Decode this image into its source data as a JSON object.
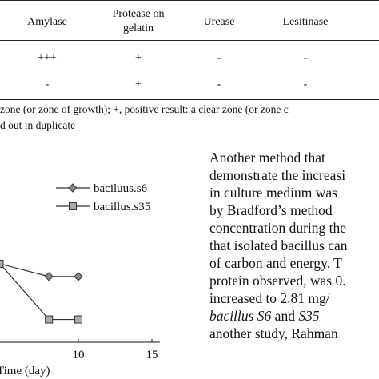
{
  "table": {
    "headers": [
      {
        "lines": [
          "Amylase"
        ]
      },
      {
        "lines": [
          "Protease on",
          "gelatin"
        ]
      },
      {
        "lines": [
          "Urease"
        ]
      },
      {
        "lines": [
          "Lesitinase"
        ]
      }
    ],
    "rows": [
      [
        "+++",
        "+",
        "-",
        "-"
      ],
      [
        "-",
        "+",
        "-",
        "-"
      ]
    ]
  },
  "footnote": {
    "line1": "zone (or zone of growth); +, positive result: a clear zone (or zone c",
    "line2": "d out in duplicate"
  },
  "chart_data": {
    "type": "line",
    "xlabel": "Time (day)",
    "x_ticks": [
      10,
      15
    ],
    "legend_position": "top-right",
    "series": [
      {
        "name": "baciluus.s6",
        "marker": "diamond",
        "color": "#888888",
        "x": [
          8,
          10
        ],
        "y": [
          0.52,
          0.52
        ]
      },
      {
        "name": "bacillus.s35",
        "marker": "square",
        "color": "#aaaaaa",
        "x": [
          8,
          10
        ],
        "y": [
          0.18,
          0.18
        ]
      }
    ]
  },
  "paragraph": {
    "lines": [
      "Another method that",
      "demonstrate the increasi",
      "in culture medium was",
      "by Bradford’s method",
      "concentration during the",
      "that isolated bacillus can",
      "of carbon and energy. T",
      "protein observed, was 0.",
      "increased to 2.81 mg/"
    ],
    "line10_italic_a": "bacillus S6",
    "line10_mid": " and ",
    "line10_italic_b": "S35",
    "line11": "another study, Rahman"
  }
}
